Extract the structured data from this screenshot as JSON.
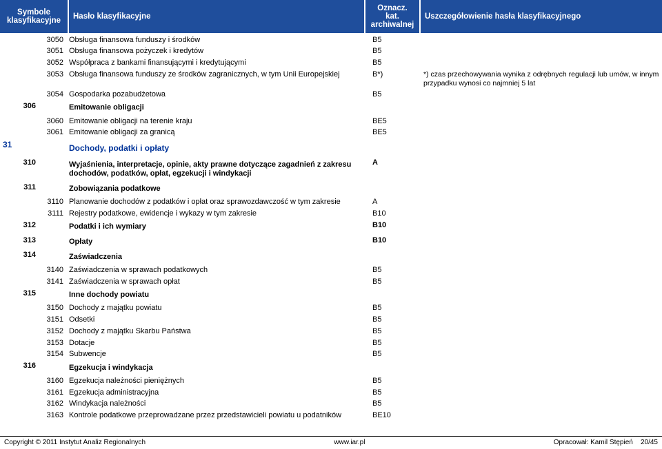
{
  "header": {
    "symbols": "Symbole klasyfikacyjne",
    "title": "Hasło klasyfikacyjne",
    "cat": "Oznacz. kat. archiwalnej",
    "note": "Uszczegółowienie hasła klasyfikacyjnego"
  },
  "rows": [
    {
      "s3": "3050",
      "title": "Obsługa finansowa funduszy i środków",
      "cat": "B5"
    },
    {
      "s3": "3051",
      "title": "Obsługa finansowa pożyczek i kredytów",
      "cat": "B5"
    },
    {
      "s3": "3052",
      "title": "Współpraca z bankami finansującymi i kredytującymi",
      "cat": "B5"
    },
    {
      "s3": "3053",
      "title": "Obsługa finansowa funduszy ze środków zagranicznych, w tym Unii Europejskiej",
      "cat": "B*)",
      "note": "*) czas przechowywania wynika z odrębnych regulacji lub umów, w innym przypadku wynosi co najmniej 5 lat"
    },
    {
      "s3": "3054",
      "title": "Gospodarka pozabudżetowa",
      "cat": "B5"
    },
    {
      "s2": "306",
      "title": "Emitowanie obligacji",
      "bold": true
    },
    {
      "s3": "3060",
      "title": "Emitowanie obligacji na terenie kraju",
      "cat": "BE5"
    },
    {
      "s3": "3061",
      "title": "Emitowanie obligacji za granicą",
      "cat": "BE5"
    },
    {
      "s1": "31",
      "title": "Dochody, podatki i opłaty",
      "blue": true
    },
    {
      "s2": "310",
      "title": "Wyjaśnienia, interpretacje, opinie, akty prawne dotyczące zagadnień z zakresu dochodów, podatków, opłat, egzekucji i windykacji",
      "cat": "A",
      "bold": true
    },
    {
      "s2": "311",
      "title": "Zobowiązania podatkowe",
      "bold": true
    },
    {
      "s3": "3110",
      "title": "Planowanie dochodów z podatków i opłat oraz sprawozdawczość w tym zakresie",
      "cat": "A"
    },
    {
      "s3": "3111",
      "title": "Rejestry podatkowe, ewidencje i wykazy w tym zakresie",
      "cat": "B10"
    },
    {
      "s2": "312",
      "title": "Podatki i ich wymiary",
      "cat": "B10",
      "bold": true
    },
    {
      "s2": "313",
      "title": "Opłaty",
      "cat": "B10",
      "bold": true
    },
    {
      "s2": "314",
      "title": "Zaświadczenia",
      "bold": true
    },
    {
      "s3": "3140",
      "title": "Zaświadczenia w sprawach podatkowych",
      "cat": "B5"
    },
    {
      "s3": "3141",
      "title": "Zaświadczenia w sprawach opłat",
      "cat": "B5"
    },
    {
      "s2": "315",
      "title": "Inne dochody powiatu",
      "bold": true
    },
    {
      "s3": "3150",
      "title": "Dochody z majątku powiatu",
      "cat": "B5"
    },
    {
      "s3": "3151",
      "title": "Odsetki",
      "cat": "B5"
    },
    {
      "s3": "3152",
      "title": "Dochody z majątku Skarbu Państwa",
      "cat": "B5"
    },
    {
      "s3": "3153",
      "title": "Dotacje",
      "cat": "B5"
    },
    {
      "s3": "3154",
      "title": "Subwencje",
      "cat": "B5"
    },
    {
      "s2": "316",
      "title": "Egzekucja i windykacja",
      "bold": true
    },
    {
      "s3": "3160",
      "title": "Egzekucja należności pieniężnych",
      "cat": "B5"
    },
    {
      "s3": "3161",
      "title": "Egzekucja administracyjna",
      "cat": "B5"
    },
    {
      "s3": "3162",
      "title": "Windykacja należności",
      "cat": "B5"
    },
    {
      "s3": "3163",
      "title": "Kontrole podatkowe przeprowadzane przez przedstawicieli powiatu u podatników",
      "cat": "BE10"
    }
  ],
  "footer": {
    "left": "Copyright © 2011 Instytut Analiz Regionalnych",
    "center": "www.iar.pl",
    "right": "Opracował: Kamil Stępień",
    "page": "20/45"
  }
}
